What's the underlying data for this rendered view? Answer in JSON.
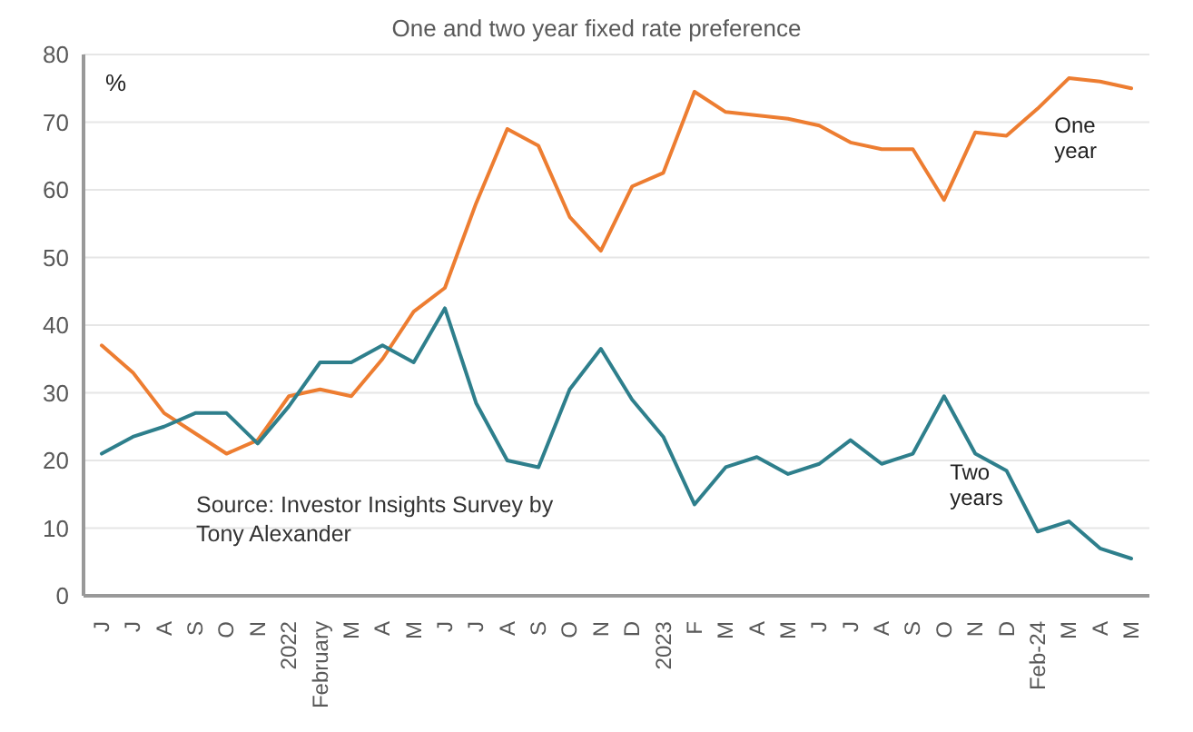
{
  "chart_data": {
    "type": "line",
    "title": "One and two year fixed rate preference",
    "ylabel": "%",
    "annotations": [
      "Source: Investor Insights Survey by Tony Alexander"
    ],
    "categories": [
      "J",
      "J",
      "A",
      "S",
      "O",
      "N",
      "2022",
      "February",
      "M",
      "A",
      "M",
      "J",
      "J",
      "A",
      "S",
      "O",
      "N",
      "D",
      "2023",
      "F",
      "M",
      "A",
      "M",
      "J",
      "J",
      "A",
      "S",
      "O",
      "N",
      "D",
      "Feb-24",
      "M",
      "A",
      "M"
    ],
    "series": [
      {
        "name": "One year",
        "color": "#ed7d31",
        "values": [
          37,
          33,
          27,
          24,
          21,
          23,
          29.5,
          30.5,
          29.5,
          35,
          42,
          45.5,
          58,
          69,
          66.5,
          56,
          51,
          60.5,
          62.5,
          74.5,
          71.5,
          71,
          70.5,
          69.5,
          67,
          66,
          66,
          58.5,
          68.5,
          68,
          72,
          76.5,
          76,
          75
        ]
      },
      {
        "name": "Two years",
        "color": "#2e7f8c",
        "values": [
          21,
          23.5,
          25,
          27,
          27,
          22.5,
          28,
          34.5,
          34.5,
          37,
          34.5,
          42.5,
          28.5,
          20,
          19,
          30.5,
          36.5,
          29,
          23.5,
          13.5,
          19,
          20.5,
          18,
          19.5,
          23,
          19.5,
          21,
          29.5,
          21,
          18.5,
          9.5,
          11,
          7,
          5.5
        ]
      }
    ],
    "ylim": [
      0,
      80
    ],
    "yticks": [
      0,
      10,
      20,
      30,
      40,
      50,
      60,
      70,
      80
    ],
    "grid": "y",
    "legend": false,
    "marker": "none",
    "line_style": "solid"
  }
}
